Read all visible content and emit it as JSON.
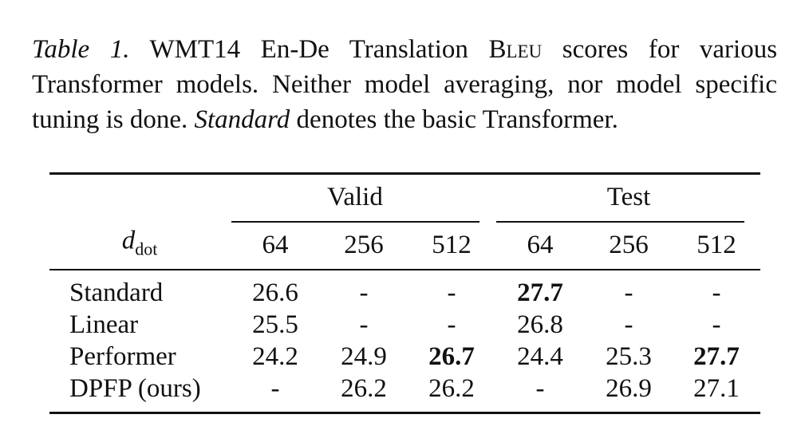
{
  "caption": {
    "label": "Table 1.",
    "text_1": "WMT14 En-De Translation",
    "smallcaps": "Bleu",
    "text_2": "scores for various Transformer models. Neither model averaging, nor model specific tuning is done.",
    "italic": "Standard",
    "text_3": "denotes the basic Transformer."
  },
  "table": {
    "groups": [
      "Valid",
      "Test"
    ],
    "row_header": {
      "symbol": "d",
      "subscript": "dot"
    },
    "columns": [
      64,
      256,
      512,
      64,
      256,
      512
    ],
    "rows": [
      {
        "label": "Standard",
        "cells": [
          "26.6",
          "-",
          "-",
          "27.7",
          "-",
          "-"
        ],
        "bold": [
          3
        ]
      },
      {
        "label": "Linear",
        "cells": [
          "25.5",
          "-",
          "-",
          "26.8",
          "-",
          "-"
        ],
        "bold": []
      },
      {
        "label": "Performer",
        "cells": [
          "24.2",
          "24.9",
          "26.7",
          "24.4",
          "25.3",
          "27.7"
        ],
        "bold": [
          2,
          5
        ]
      },
      {
        "label": "DPFP (ours)",
        "cells": [
          "-",
          "26.2",
          "26.2",
          "-",
          "26.9",
          "27.1"
        ],
        "bold": []
      }
    ]
  }
}
